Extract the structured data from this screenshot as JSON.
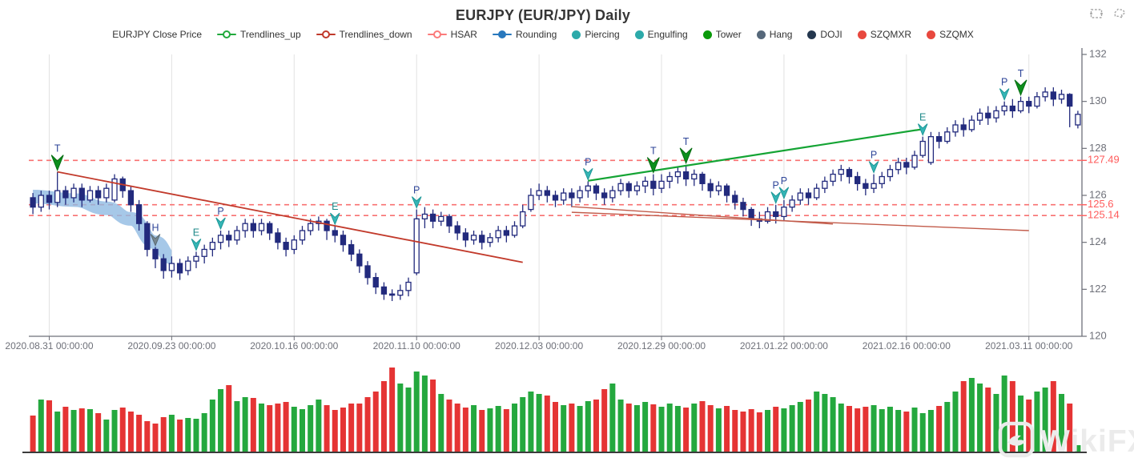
{
  "header": {
    "title": "EURJPY (EUR/JPY) Daily"
  },
  "toolbox": {
    "icons": [
      {
        "name": "box-select"
      },
      {
        "name": "lasso-select"
      }
    ],
    "color": "#a6a6a6"
  },
  "legend": {
    "items": [
      {
        "label": "EURJPY Close Price",
        "symbol": "none",
        "color": ""
      },
      {
        "label": "Trendlines_up",
        "symbol": "line-circle",
        "color": "#21a93c"
      },
      {
        "label": "Trendlines_down",
        "symbol": "line-circle",
        "color": "#c0392b"
      },
      {
        "label": "HSAR",
        "symbol": "line-circle",
        "color": "#fb7a7a"
      },
      {
        "label": "Rounding",
        "symbol": "line-dot",
        "color": "#2878bd"
      },
      {
        "label": "Piercing",
        "symbol": "dot",
        "color": "#2caaaa"
      },
      {
        "label": "Engulfing",
        "symbol": "dot",
        "color": "#2caaaa"
      },
      {
        "label": "Tower",
        "symbol": "dot",
        "color": "#0a9a0a"
      },
      {
        "label": "Hang",
        "symbol": "dot",
        "color": "#56687a"
      },
      {
        "label": "DOJI",
        "symbol": "dot",
        "color": "#24374e"
      },
      {
        "label": "SZQMXR",
        "symbol": "dot",
        "color": "#e8483e"
      },
      {
        "label": "SZQMX",
        "symbol": "dot",
        "color": "#e8483e"
      }
    ]
  },
  "watermark": {
    "text": "WikiFX"
  },
  "chart_data": {
    "type": "candlestick+volume",
    "title": "EURJPY (EUR/JPY) Daily",
    "x_axis": {
      "labels": [
        "2020.08.31 00:00:00",
        "2020.09.23 00:00:00",
        "2020.10.16 00:00:00",
        "2020.11.10 00:00:00",
        "2020.12.03 00:00:00",
        "2020.12.29 00:00:00",
        "2021.01.22 00:00:00",
        "2021.02.16 00:00:00",
        "2021.03.11 00:00:00"
      ],
      "tick_indices": [
        2,
        17,
        32,
        47,
        62,
        77,
        92,
        107,
        122
      ]
    },
    "y_axis": {
      "ticks": [
        132,
        130,
        128,
        126,
        124,
        122,
        120
      ],
      "range": [
        120,
        132
      ],
      "hsar_levels": [
        {
          "value": 127.49,
          "label": "127.49"
        },
        {
          "value": 125.6,
          "label": "125.6"
        },
        {
          "value": 125.14,
          "label": "125.14"
        }
      ]
    },
    "candles": [
      [
        125.9,
        125.5,
        125.2,
        126.1
      ],
      [
        125.5,
        126.0,
        125.3,
        126.2
      ],
      [
        126.0,
        125.7,
        125.4,
        126.2
      ],
      [
        125.7,
        126.2,
        125.5,
        127.0
      ],
      [
        126.2,
        125.9,
        125.6,
        126.4
      ],
      [
        125.9,
        126.3,
        125.7,
        126.5
      ],
      [
        126.3,
        125.8,
        125.5,
        126.5
      ],
      [
        125.8,
        126.2,
        125.7,
        126.4
      ],
      [
        126.2,
        125.9,
        125.6,
        126.4
      ],
      [
        125.9,
        126.3,
        125.7,
        126.5
      ],
      [
        125.8,
        126.7,
        125.7,
        126.9
      ],
      [
        126.7,
        126.2,
        125.9,
        126.8
      ],
      [
        126.2,
        125.6,
        125.3,
        126.4
      ],
      [
        125.6,
        124.8,
        124.5,
        125.8
      ],
      [
        124.8,
        123.7,
        123.4,
        124.9
      ],
      [
        123.7,
        123.3,
        122.9,
        123.8
      ],
      [
        123.3,
        122.8,
        122.45,
        123.5
      ],
      [
        122.8,
        123.1,
        122.5,
        123.4
      ],
      [
        123.1,
        122.7,
        122.4,
        123.3
      ],
      [
        122.8,
        123.2,
        122.6,
        123.4
      ],
      [
        123.2,
        123.4,
        122.9,
        123.6
      ],
      [
        123.4,
        123.7,
        123.1,
        123.9
      ],
      [
        123.7,
        124.0,
        123.4,
        124.2
      ],
      [
        124.0,
        124.3,
        123.7,
        124.5
      ],
      [
        124.3,
        124.1,
        123.8,
        124.5
      ],
      [
        124.1,
        124.5,
        123.9,
        124.7
      ],
      [
        124.5,
        124.8,
        124.2,
        125.0
      ],
      [
        124.8,
        124.5,
        124.2,
        125.0
      ],
      [
        124.5,
        124.8,
        124.3,
        125.0
      ],
      [
        124.8,
        124.4,
        124.1,
        124.9
      ],
      [
        124.4,
        124.0,
        123.7,
        124.6
      ],
      [
        124.0,
        123.7,
        123.4,
        124.2
      ],
      [
        123.7,
        124.1,
        123.5,
        124.3
      ],
      [
        124.1,
        124.5,
        123.9,
        124.7
      ],
      [
        124.5,
        124.8,
        124.3,
        125.0
      ],
      [
        124.8,
        124.9,
        124.5,
        125.1
      ],
      [
        124.9,
        124.5,
        124.1,
        125.0
      ],
      [
        124.5,
        124.3,
        124.0,
        124.7
      ],
      [
        124.3,
        123.9,
        123.6,
        124.5
      ],
      [
        123.9,
        123.5,
        123.2,
        124.1
      ],
      [
        123.5,
        123.0,
        122.7,
        123.7
      ],
      [
        123.0,
        122.5,
        122.2,
        123.2
      ],
      [
        122.5,
        122.1,
        121.8,
        122.7
      ],
      [
        122.1,
        121.8,
        121.55,
        122.3
      ],
      [
        121.8,
        121.75,
        121.5,
        122.0
      ],
      [
        121.75,
        121.95,
        121.55,
        122.2
      ],
      [
        121.95,
        122.3,
        121.7,
        122.5
      ],
      [
        122.7,
        125.0,
        122.6,
        125.4
      ],
      [
        125.0,
        125.2,
        124.6,
        125.5
      ],
      [
        125.2,
        124.9,
        124.6,
        125.4
      ],
      [
        124.9,
        125.1,
        124.7,
        125.3
      ],
      [
        125.1,
        124.7,
        124.4,
        125.2
      ],
      [
        124.7,
        124.4,
        124.1,
        124.9
      ],
      [
        124.4,
        124.1,
        123.8,
        124.6
      ],
      [
        124.1,
        124.3,
        123.9,
        124.5
      ],
      [
        124.3,
        124.0,
        123.7,
        124.5
      ],
      [
        124.0,
        124.2,
        123.8,
        124.4
      ],
      [
        124.2,
        124.5,
        124.0,
        124.7
      ],
      [
        124.5,
        124.3,
        124.0,
        124.7
      ],
      [
        124.3,
        124.7,
        124.2,
        124.9
      ],
      [
        124.7,
        125.3,
        124.6,
        125.6
      ],
      [
        125.4,
        126.0,
        125.3,
        126.3
      ],
      [
        126.0,
        126.2,
        125.8,
        126.5
      ],
      [
        126.2,
        126.0,
        125.7,
        126.4
      ],
      [
        126.0,
        125.8,
        125.5,
        126.2
      ],
      [
        125.8,
        126.1,
        125.6,
        126.3
      ],
      [
        126.1,
        125.9,
        125.5,
        126.3
      ],
      [
        125.9,
        126.2,
        125.7,
        126.4
      ],
      [
        126.2,
        126.4,
        125.9,
        126.6
      ],
      [
        126.4,
        126.1,
        125.8,
        126.5
      ],
      [
        126.1,
        125.9,
        125.6,
        126.3
      ],
      [
        125.9,
        126.2,
        125.7,
        126.4
      ],
      [
        126.2,
        126.5,
        126.0,
        126.7
      ],
      [
        126.5,
        126.2,
        125.9,
        126.6
      ],
      [
        126.2,
        126.4,
        126.0,
        126.6
      ],
      [
        126.4,
        126.6,
        126.1,
        126.8
      ],
      [
        126.6,
        126.3,
        126.0,
        126.9
      ],
      [
        126.3,
        126.6,
        126.1,
        126.9
      ],
      [
        126.6,
        126.8,
        126.3,
        127.0
      ],
      [
        126.8,
        127.0,
        126.5,
        127.2
      ],
      [
        127.0,
        126.7,
        126.4,
        127.3
      ],
      [
        126.7,
        126.9,
        126.4,
        127.1
      ],
      [
        126.9,
        126.5,
        126.2,
        127.0
      ],
      [
        126.5,
        126.2,
        125.9,
        126.7
      ],
      [
        126.2,
        126.4,
        126.0,
        126.6
      ],
      [
        126.4,
        126.0,
        125.7,
        126.5
      ],
      [
        126.0,
        125.7,
        125.4,
        126.2
      ],
      [
        125.7,
        125.4,
        125.1,
        125.9
      ],
      [
        125.4,
        125.0,
        124.7,
        125.5
      ],
      [
        125.0,
        124.9,
        124.6,
        125.3
      ],
      [
        124.9,
        125.3,
        124.8,
        125.5
      ],
      [
        125.3,
        125.1,
        124.8,
        125.6
      ],
      [
        125.1,
        125.5,
        124.9,
        125.8
      ],
      [
        125.5,
        125.8,
        125.3,
        126.0
      ],
      [
        125.8,
        126.1,
        125.6,
        126.3
      ],
      [
        126.1,
        125.9,
        125.6,
        126.3
      ],
      [
        125.9,
        126.3,
        125.8,
        126.5
      ],
      [
        126.3,
        126.6,
        126.1,
        126.8
      ],
      [
        126.6,
        126.9,
        126.4,
        127.1
      ],
      [
        126.9,
        127.1,
        126.6,
        127.3
      ],
      [
        127.1,
        126.8,
        126.5,
        127.2
      ],
      [
        126.8,
        126.5,
        126.2,
        127.0
      ],
      [
        126.5,
        126.3,
        126.0,
        126.7
      ],
      [
        126.3,
        126.5,
        126.1,
        126.9
      ],
      [
        126.5,
        126.8,
        126.3,
        127.0
      ],
      [
        126.8,
        127.1,
        126.6,
        127.3
      ],
      [
        127.1,
        127.4,
        126.9,
        127.6
      ],
      [
        127.4,
        127.2,
        126.9,
        127.6
      ],
      [
        127.2,
        127.7,
        127.1,
        127.9
      ],
      [
        127.7,
        128.3,
        127.6,
        128.5
      ],
      [
        127.4,
        128.5,
        127.3,
        128.7
      ],
      [
        128.5,
        128.3,
        128.0,
        128.7
      ],
      [
        128.3,
        128.7,
        128.2,
        128.9
      ],
      [
        128.7,
        129.0,
        128.5,
        129.2
      ],
      [
        129.0,
        128.8,
        128.5,
        129.3
      ],
      [
        128.8,
        129.2,
        128.7,
        129.4
      ],
      [
        129.2,
        129.5,
        129.0,
        129.7
      ],
      [
        129.5,
        129.3,
        129.0,
        129.8
      ],
      [
        129.3,
        129.6,
        129.1,
        129.8
      ],
      [
        129.6,
        129.8,
        129.4,
        130.0
      ],
      [
        129.8,
        129.6,
        129.3,
        130.1
      ],
      [
        129.6,
        130.0,
        129.5,
        130.2
      ],
      [
        130.0,
        129.8,
        129.5,
        130.2
      ],
      [
        129.8,
        130.2,
        129.7,
        130.4
      ],
      [
        130.2,
        130.4,
        130.0,
        130.6
      ],
      [
        130.4,
        130.1,
        129.8,
        130.6
      ],
      [
        130.1,
        130.3,
        129.9,
        130.5
      ],
      [
        130.3,
        129.8,
        128.9,
        130.35
      ],
      [
        129.0,
        129.45,
        128.85,
        129.6
      ]
    ],
    "volume": [
      45,
      65,
      64,
      50,
      56,
      52,
      54,
      53,
      48,
      40,
      52,
      55,
      50,
      46,
      38,
      35,
      43,
      46,
      40,
      42,
      41,
      48,
      65,
      78,
      83,
      63,
      68,
      67,
      60,
      58,
      60,
      62,
      56,
      53,
      58,
      65,
      58,
      52,
      55,
      60,
      60,
      68,
      75,
      88,
      105,
      85,
      80,
      100,
      95,
      90,
      72,
      65,
      60,
      55,
      58,
      52,
      54,
      57,
      53,
      60,
      68,
      75,
      72,
      70,
      62,
      58,
      60,
      57,
      63,
      65,
      78,
      85,
      65,
      60,
      58,
      62,
      59,
      56,
      60,
      57,
      55,
      60,
      63,
      58,
      54,
      57,
      52,
      50,
      53,
      49,
      52,
      56,
      54,
      58,
      62,
      65,
      75,
      72,
      68,
      60,
      57,
      54,
      56,
      58,
      53,
      56,
      52,
      50,
      55,
      48,
      52,
      57,
      62,
      75,
      88,
      92,
      85,
      80,
      72,
      95,
      88,
      70,
      65,
      75,
      80,
      88,
      72,
      60,
      8
    ],
    "markers": [
      {
        "i": 3,
        "label": "T",
        "kind": "tower"
      },
      {
        "i": 15,
        "label": "H",
        "kind": "hang"
      },
      {
        "i": 20,
        "label": "E",
        "kind": "engulfing"
      },
      {
        "i": 23,
        "label": "P",
        "kind": "piercing"
      },
      {
        "i": 37,
        "label": "E",
        "kind": "engulfing"
      },
      {
        "i": 47,
        "label": "P",
        "kind": "piercing"
      },
      {
        "i": 68,
        "label": "P",
        "kind": "piercing"
      },
      {
        "i": 76,
        "label": "T",
        "kind": "tower"
      },
      {
        "i": 80,
        "label": "T",
        "kind": "tower"
      },
      {
        "i": 91,
        "label": "P",
        "kind": "piercing"
      },
      {
        "i": 92,
        "label": "P",
        "kind": "piercing"
      },
      {
        "i": 103,
        "label": "P",
        "kind": "piercing"
      },
      {
        "i": 109,
        "label": "E",
        "kind": "engulfing"
      },
      {
        "i": 119,
        "label": "P",
        "kind": "piercing"
      },
      {
        "i": 121,
        "label": "T",
        "kind": "tower"
      }
    ],
    "trendlines": [
      {
        "series": "Trendlines_down",
        "from": [
          3,
          127.0
        ],
        "to": [
          60,
          123.15
        ],
        "color": "#c23a2b",
        "width": 1.8
      },
      {
        "series": "Trendlines_up",
        "from": [
          68,
          126.62
        ],
        "to": [
          109,
          128.82
        ],
        "color": "#14a434",
        "width": 2.2
      },
      {
        "series": "Trendlines_down",
        "from": [
          66,
          125.52
        ],
        "to": [
          98,
          124.78
        ],
        "color": "#c25b4a",
        "width": 1.4
      },
      {
        "series": "Trendlines_down",
        "from": [
          66,
          125.28
        ],
        "to": [
          122,
          124.5
        ],
        "color": "#c25b4a",
        "width": 1.4
      }
    ],
    "rounding_band": {
      "points": [
        [
          0,
          125.95
        ],
        [
          5,
          125.8
        ],
        [
          9,
          125.45
        ],
        [
          12,
          125.0
        ],
        [
          15,
          124.0
        ],
        [
          17,
          123.35
        ]
      ],
      "color": "rgba(144,186,226,0.8)"
    },
    "colors": {
      "candle": "#222a7d",
      "volume_up": "#24a83e",
      "volume_down": "#e53434",
      "hsar": "#f87070",
      "hsar_label": "#ff5b5b",
      "grid": "#e2e2e2",
      "axis": "#6e7079",
      "vol_axis": "#3c3c3c",
      "tower": "#0c8f1c",
      "tower_dark": "#066d12",
      "piercing": "#35b6b6",
      "piercing_dark": "#1f9898",
      "hang": "#76868f",
      "hang_dark": "#5a6a73",
      "marker_letter": "#2f4699",
      "marker_letter_e": "#1f8a8a"
    },
    "legend_entries": [
      "EURJPY Close Price",
      "Trendlines_up",
      "Trendlines_down",
      "HSAR",
      "Rounding",
      "Piercing",
      "Engulfing",
      "Tower",
      "Hang",
      "DOJI",
      "SZQMXR",
      "SZQMX"
    ]
  }
}
